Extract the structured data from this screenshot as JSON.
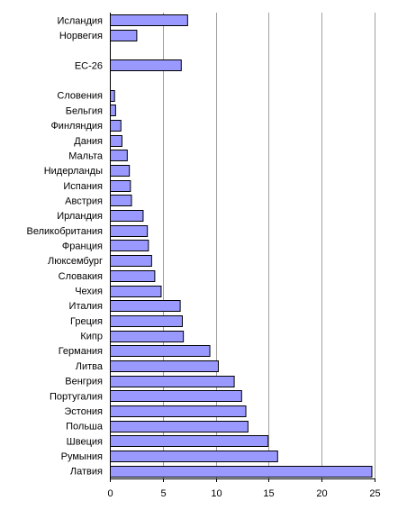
{
  "chart_data": {
    "type": "bar",
    "orientation": "horizontal",
    "title": "",
    "xlabel": "",
    "ylabel": "",
    "xlim": [
      0,
      25
    ],
    "x_ticks": [
      0,
      5,
      10,
      15,
      20,
      25
    ],
    "grid": "vertical",
    "legend": "none",
    "bar_color": "#9999ff",
    "categories": [
      "Исландия",
      "Норвегия",
      "",
      "ЕС-26",
      "",
      "Словения",
      "Бельгия",
      "Финляндия",
      "Дания",
      "Мальта",
      "Нидерланды",
      "Испания",
      "Австрия",
      "Ирландия",
      "Великобритания",
      "Франция",
      "Люксембург",
      "Словакия",
      "Чехия",
      "Италия",
      "Греция",
      "Кипр",
      "Германия",
      "Литва",
      "Венгрия",
      "Португалия",
      "Эстония",
      "Польша",
      "Швеция",
      "Румыния",
      "Латвия"
    ],
    "values": [
      7.3,
      2.5,
      null,
      6.7,
      null,
      0.4,
      0.5,
      1.0,
      1.1,
      1.6,
      1.8,
      1.9,
      2.0,
      3.1,
      3.5,
      3.6,
      3.9,
      4.2,
      4.8,
      6.6,
      6.8,
      6.9,
      9.4,
      10.2,
      11.7,
      12.4,
      12.8,
      13.0,
      14.9,
      15.8,
      24.7
    ]
  }
}
